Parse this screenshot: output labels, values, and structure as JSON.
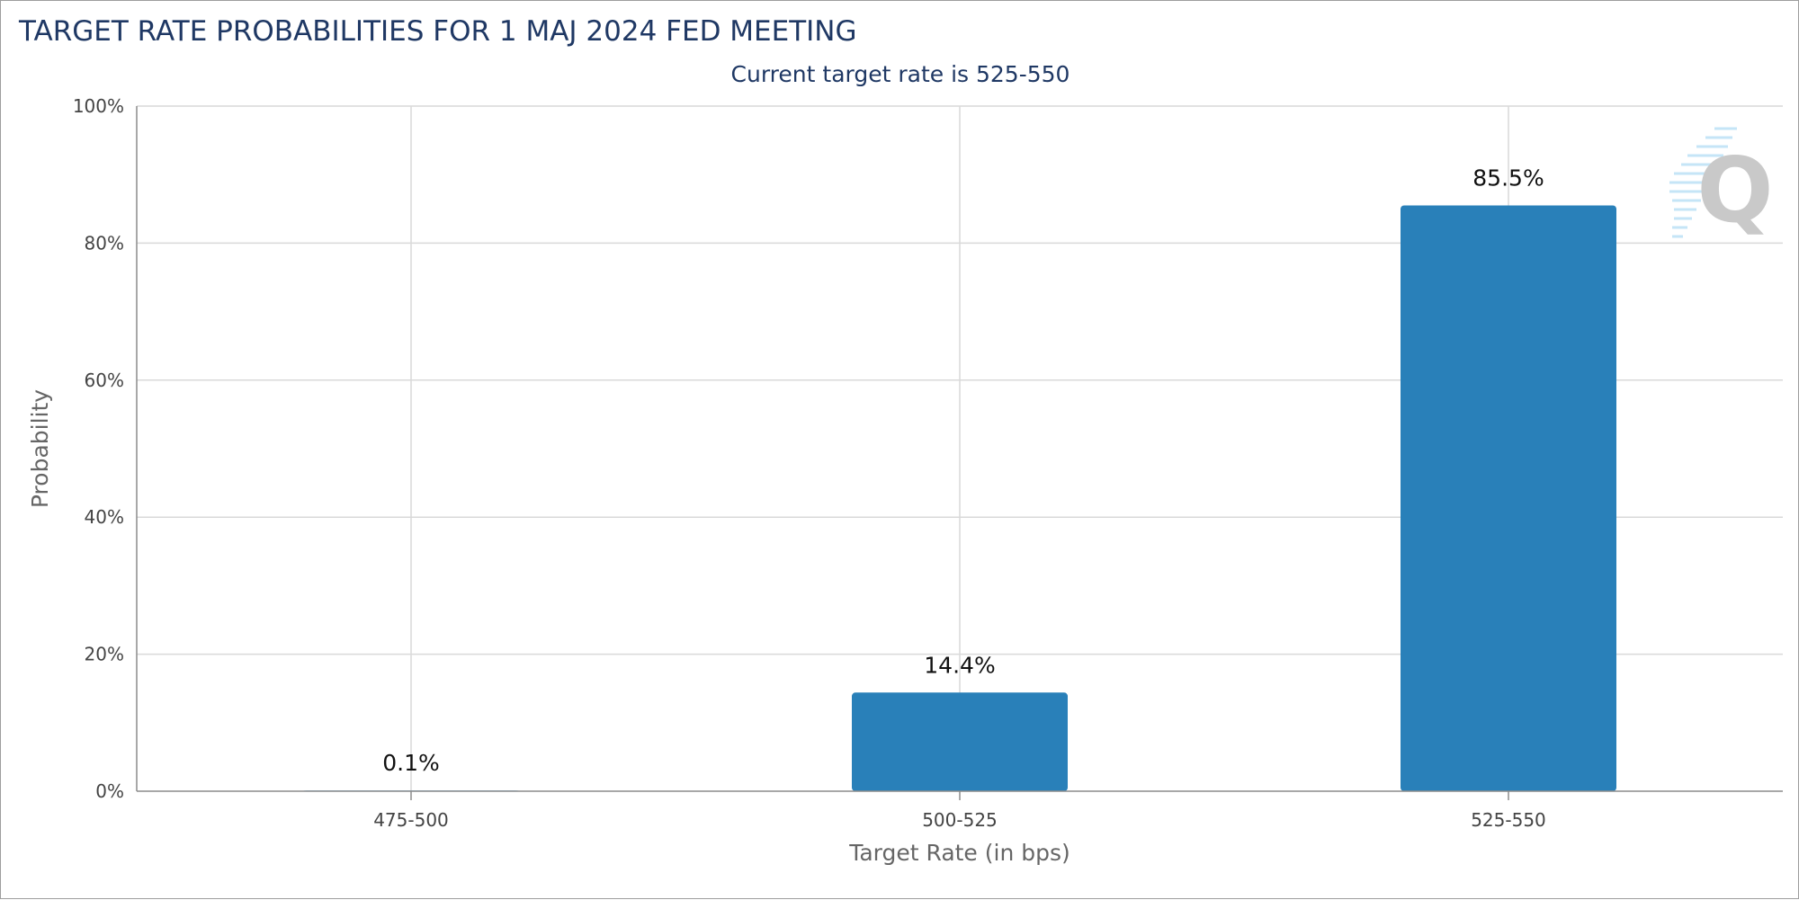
{
  "chart_data": {
    "type": "bar",
    "title": "TARGET RATE PROBABILITIES FOR 1 MAJ 2024 FED MEETING",
    "subtitle": "Current target rate is 525-550",
    "xlabel": "Target Rate (in bps)",
    "ylabel": "Probability",
    "categories": [
      "475-500",
      "500-525",
      "525-550"
    ],
    "values": [
      0.1,
      14.4,
      85.5
    ],
    "data_labels": [
      "0.1%",
      "14.4%",
      "85.5%"
    ],
    "ylim": [
      0,
      100
    ],
    "yticks": [
      0,
      20,
      40,
      60,
      80,
      100
    ],
    "ytick_labels": [
      "0%",
      "20%",
      "40%",
      "60%",
      "80%",
      "100%"
    ],
    "grid": true,
    "bar_color": "#2980b9",
    "watermark": "Q"
  }
}
